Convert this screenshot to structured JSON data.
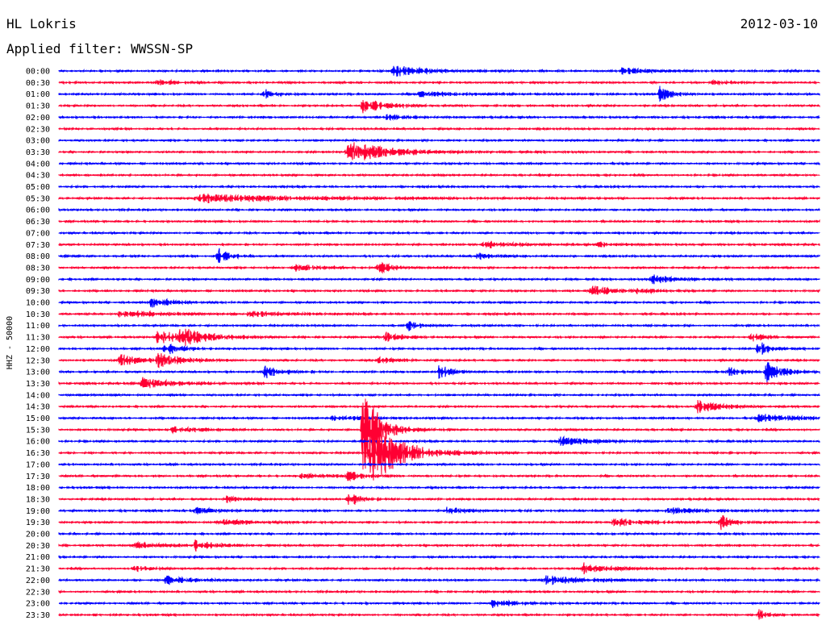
{
  "header": {
    "station": "HL Lokris",
    "date": "2012-03-10",
    "filter_label": "Applied filter: WWSSN-SP"
  },
  "chart_data": {
    "type": "line",
    "ylabel": "HHZ - 50000",
    "trace_colors": [
      "#0000ff",
      "#ff0033"
    ],
    "tick_labels": [
      "00:00",
      "00:30",
      "01:00",
      "01:30",
      "02:00",
      "02:30",
      "03:00",
      "03:30",
      "04:00",
      "04:30",
      "05:00",
      "05:30",
      "06:00",
      "06:30",
      "07:00",
      "07:30",
      "08:00",
      "08:30",
      "09:00",
      "09:30",
      "10:00",
      "10:30",
      "11:00",
      "11:30",
      "12:00",
      "12:30",
      "13:00",
      "13:30",
      "14:00",
      "14:30",
      "15:00",
      "15:30",
      "16:00",
      "16:30",
      "17:00",
      "17:30",
      "18:00",
      "18:30",
      "19:00",
      "19:30",
      "20:00",
      "20:30",
      "21:00",
      "21:30",
      "22:00",
      "22:30",
      "23:00",
      "23:30"
    ],
    "events": [
      {
        "trace": 0,
        "t": 0.44,
        "amp": 7,
        "dur": 0.04
      },
      {
        "trace": 0,
        "t": 0.74,
        "amp": 4,
        "dur": 0.03
      },
      {
        "trace": 1,
        "t": 0.13,
        "amp": 4,
        "dur": 0.02
      },
      {
        "trace": 1,
        "t": 0.86,
        "amp": 3,
        "dur": 0.02
      },
      {
        "trace": 2,
        "t": 0.27,
        "amp": 6,
        "dur": 0.015
      },
      {
        "trace": 2,
        "t": 0.47,
        "amp": 3,
        "dur": 0.06
      },
      {
        "trace": 2,
        "t": 0.79,
        "amp": 9,
        "dur": 0.015
      },
      {
        "trace": 3,
        "t": 0.4,
        "amp": 9,
        "dur": 0.03
      },
      {
        "trace": 4,
        "t": 0.43,
        "amp": 3,
        "dur": 0.03
      },
      {
        "trace": 7,
        "t": 0.38,
        "amp": 16,
        "dur": 0.05
      },
      {
        "trace": 11,
        "t": 0.18,
        "amp": 5,
        "dur": 0.15
      },
      {
        "trace": 15,
        "t": 0.56,
        "amp": 5,
        "dur": 0.03
      },
      {
        "trace": 15,
        "t": 0.71,
        "amp": 3,
        "dur": 0.02
      },
      {
        "trace": 16,
        "t": 0.21,
        "amp": 10,
        "dur": 0.015
      },
      {
        "trace": 16,
        "t": 0.55,
        "amp": 4,
        "dur": 0.02
      },
      {
        "trace": 17,
        "t": 0.31,
        "amp": 5,
        "dur": 0.03
      },
      {
        "trace": 17,
        "t": 0.42,
        "amp": 7,
        "dur": 0.02
      },
      {
        "trace": 18,
        "t": 0.78,
        "amp": 6,
        "dur": 0.03
      },
      {
        "trace": 19,
        "t": 0.7,
        "amp": 6,
        "dur": 0.03
      },
      {
        "trace": 19,
        "t": 0.76,
        "amp": 3,
        "dur": 0.02
      },
      {
        "trace": 20,
        "t": 0.12,
        "amp": 6,
        "dur": 0.03
      },
      {
        "trace": 21,
        "t": 0.08,
        "amp": 5,
        "dur": 0.05
      },
      {
        "trace": 21,
        "t": 0.25,
        "amp": 4,
        "dur": 0.04
      },
      {
        "trace": 22,
        "t": 0.46,
        "amp": 6,
        "dur": 0.015
      },
      {
        "trace": 23,
        "t": 0.13,
        "amp": 8,
        "dur": 0.04
      },
      {
        "trace": 23,
        "t": 0.16,
        "amp": 9,
        "dur": 0.03
      },
      {
        "trace": 23,
        "t": 0.43,
        "amp": 6,
        "dur": 0.02
      },
      {
        "trace": 23,
        "t": 0.91,
        "amp": 6,
        "dur": 0.015
      },
      {
        "trace": 24,
        "t": 0.14,
        "amp": 8,
        "dur": 0.02
      },
      {
        "trace": 24,
        "t": 0.92,
        "amp": 12,
        "dur": 0.01
      },
      {
        "trace": 25,
        "t": 0.08,
        "amp": 7,
        "dur": 0.03
      },
      {
        "trace": 25,
        "t": 0.13,
        "amp": 8,
        "dur": 0.03
      },
      {
        "trace": 25,
        "t": 0.42,
        "amp": 4,
        "dur": 0.02
      },
      {
        "trace": 26,
        "t": 0.27,
        "amp": 9,
        "dur": 0.02
      },
      {
        "trace": 26,
        "t": 0.5,
        "amp": 9,
        "dur": 0.015
      },
      {
        "trace": 26,
        "t": 0.88,
        "amp": 6,
        "dur": 0.015
      },
      {
        "trace": 26,
        "t": 0.93,
        "amp": 14,
        "dur": 0.02
      },
      {
        "trace": 27,
        "t": 0.11,
        "amp": 7,
        "dur": 0.04
      },
      {
        "trace": 29,
        "t": 0.84,
        "amp": 8,
        "dur": 0.03
      },
      {
        "trace": 30,
        "t": 0.36,
        "amp": 3,
        "dur": 0.04
      },
      {
        "trace": 30,
        "t": 0.92,
        "amp": 5,
        "dur": 0.06
      },
      {
        "trace": 31,
        "t": 0.4,
        "amp": 55,
        "dur": 0.02
      },
      {
        "trace": 31,
        "t": 0.15,
        "amp": 4,
        "dur": 0.03
      },
      {
        "trace": 32,
        "t": 0.66,
        "amp": 5,
        "dur": 0.04
      },
      {
        "trace": 33,
        "t": 0.41,
        "amp": 40,
        "dur": 0.04
      },
      {
        "trace": 35,
        "t": 0.32,
        "amp": 4,
        "dur": 0.03
      },
      {
        "trace": 35,
        "t": 0.38,
        "amp": 5,
        "dur": 0.02
      },
      {
        "trace": 37,
        "t": 0.38,
        "amp": 10,
        "dur": 0.015
      },
      {
        "trace": 37,
        "t": 0.22,
        "amp": 4,
        "dur": 0.02
      },
      {
        "trace": 38,
        "t": 0.18,
        "amp": 4,
        "dur": 0.03
      },
      {
        "trace": 38,
        "t": 0.51,
        "amp": 4,
        "dur": 0.03
      },
      {
        "trace": 38,
        "t": 0.8,
        "amp": 4,
        "dur": 0.04
      },
      {
        "trace": 39,
        "t": 0.21,
        "amp": 4,
        "dur": 0.04
      },
      {
        "trace": 39,
        "t": 0.73,
        "amp": 5,
        "dur": 0.04
      },
      {
        "trace": 39,
        "t": 0.87,
        "amp": 9,
        "dur": 0.015
      },
      {
        "trace": 41,
        "t": 0.1,
        "amp": 4,
        "dur": 0.04
      },
      {
        "trace": 41,
        "t": 0.18,
        "amp": 8,
        "dur": 0.02
      },
      {
        "trace": 43,
        "t": 0.1,
        "amp": 5,
        "dur": 0.015
      },
      {
        "trace": 43,
        "t": 0.69,
        "amp": 7,
        "dur": 0.03
      },
      {
        "trace": 44,
        "t": 0.14,
        "amp": 6,
        "dur": 0.03
      },
      {
        "trace": 44,
        "t": 0.64,
        "amp": 6,
        "dur": 0.05
      },
      {
        "trace": 46,
        "t": 0.57,
        "amp": 5,
        "dur": 0.03
      },
      {
        "trace": 47,
        "t": 0.92,
        "amp": 7,
        "dur": 0.01
      }
    ]
  }
}
